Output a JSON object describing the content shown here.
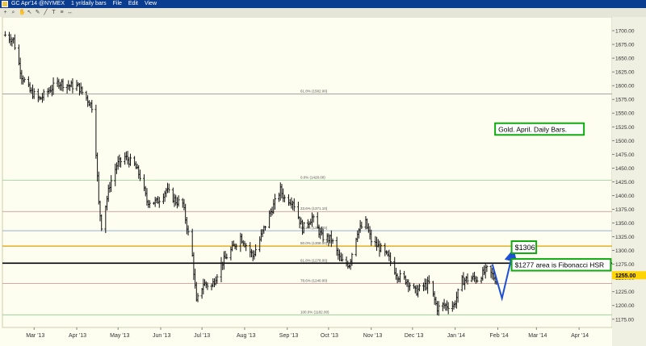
{
  "window": {
    "title": "GC Apr'14 @NYMEX",
    "period": "1 yr/daily bars",
    "menu": [
      "File",
      "Edit",
      "View"
    ]
  },
  "toolbar": {
    "icons": [
      "crosshair-icon",
      "zoom-icon",
      "hand-icon",
      "arrow-icon",
      "pencil-icon",
      "line-icon",
      "text-icon",
      "fib-icon",
      "measure-icon"
    ]
  },
  "chart_data": {
    "type": "ohlc",
    "title": "",
    "xlabel": "",
    "ylabel": "",
    "ylim": [
      1160,
      1725
    ],
    "y_ticks": [
      1700,
      1675,
      1650,
      1625,
      1600,
      1575,
      1550,
      1525,
      1500,
      1475,
      1450,
      1425,
      1400,
      1375,
      1350,
      1325,
      1300,
      1275,
      1250,
      1225,
      1200,
      1175
    ],
    "y_tick_labels": [
      "1700.00",
      "1675.00",
      "1650.00",
      "1625.00",
      "1600.00",
      "1575.00",
      "1550.00",
      "1525.00",
      "1500.00",
      "1475.00",
      "1450.00",
      "1425.00",
      "1400.00",
      "1375.00",
      "1350.00",
      "1325.00",
      "1300.00",
      "1275.00",
      "1250.00",
      "1225.00",
      "1200.00",
      "1175.00"
    ],
    "x_range": [
      "2013-02-06",
      "2014-04-25"
    ],
    "x_ticks": [
      {
        "date": "2013-03-01",
        "label": "Mar '13"
      },
      {
        "date": "2013-04-01",
        "label": "Apr '13"
      },
      {
        "date": "2013-05-01",
        "label": "May '13"
      },
      {
        "date": "2013-06-01",
        "label": "Jun '13"
      },
      {
        "date": "2013-07-01",
        "label": "Jul '13"
      },
      {
        "date": "2013-08-01",
        "label": "Aug '13"
      },
      {
        "date": "2013-09-01",
        "label": "Sep '13"
      },
      {
        "date": "2013-10-01",
        "label": "Oct '13"
      },
      {
        "date": "2013-11-01",
        "label": "Nov '13"
      },
      {
        "date": "2013-12-01",
        "label": "Dec '13"
      },
      {
        "date": "2014-01-01",
        "label": "Jan '14"
      },
      {
        "date": "2014-02-01",
        "label": "Feb '14"
      },
      {
        "date": "2014-03-01",
        "label": "Mar '14"
      },
      {
        "date": "2014-04-01",
        "label": "Apr '14"
      }
    ],
    "price_path": [
      [
        "2013-02-08",
        1692
      ],
      [
        "2013-02-14",
        1683
      ],
      [
        "2013-02-20",
        1618
      ],
      [
        "2013-02-26",
        1590
      ],
      [
        "2013-03-05",
        1575
      ],
      [
        "2013-03-12",
        1592
      ],
      [
        "2013-03-19",
        1606
      ],
      [
        "2013-03-26",
        1600
      ],
      [
        "2013-04-02",
        1598
      ],
      [
        "2013-04-08",
        1578
      ],
      [
        "2013-04-12",
        1562
      ],
      [
        "2013-04-15",
        1480
      ],
      [
        "2013-04-17",
        1385
      ],
      [
        "2013-04-19",
        1345
      ],
      [
        "2013-04-25",
        1420
      ],
      [
        "2013-04-30",
        1455
      ],
      [
        "2013-05-06",
        1470
      ],
      [
        "2013-05-13",
        1455
      ],
      [
        "2013-05-17",
        1435
      ],
      [
        "2013-05-22",
        1390
      ],
      [
        "2013-05-29",
        1388
      ],
      [
        "2013-06-05",
        1410
      ],
      [
        "2013-06-12",
        1390
      ],
      [
        "2013-06-17",
        1385
      ],
      [
        "2013-06-24",
        1290
      ],
      [
        "2013-06-27",
        1205
      ],
      [
        "2013-07-02",
        1240
      ],
      [
        "2013-07-08",
        1235
      ],
      [
        "2013-07-15",
        1275
      ],
      [
        "2013-07-22",
        1300
      ],
      [
        "2013-07-29",
        1325
      ],
      [
        "2013-08-02",
        1310
      ],
      [
        "2013-08-07",
        1290
      ],
      [
        "2013-08-12",
        1320
      ],
      [
        "2013-08-19",
        1365
      ],
      [
        "2013-08-27",
        1410
      ],
      [
        "2013-08-30",
        1395
      ],
      [
        "2013-09-05",
        1390
      ],
      [
        "2013-09-12",
        1340
      ],
      [
        "2013-09-19",
        1360
      ],
      [
        "2013-09-26",
        1325
      ],
      [
        "2013-10-03",
        1320
      ],
      [
        "2013-10-10",
        1280
      ],
      [
        "2013-10-16",
        1275
      ],
      [
        "2013-10-22",
        1335
      ],
      [
        "2013-10-28",
        1350
      ],
      [
        "2013-11-01",
        1318
      ],
      [
        "2013-11-07",
        1305
      ],
      [
        "2013-11-14",
        1285
      ],
      [
        "2013-11-20",
        1255
      ],
      [
        "2013-11-27",
        1245
      ],
      [
        "2013-12-03",
        1225
      ],
      [
        "2013-12-09",
        1235
      ],
      [
        "2013-12-13",
        1240
      ],
      [
        "2013-12-19",
        1195
      ],
      [
        "2013-12-23",
        1200
      ],
      [
        "2013-12-31",
        1200
      ],
      [
        "2014-01-06",
        1245
      ],
      [
        "2014-01-13",
        1250
      ],
      [
        "2014-01-17",
        1248
      ],
      [
        "2014-01-24",
        1265
      ],
      [
        "2014-01-28",
        1255
      ],
      [
        "2014-01-31",
        1245
      ]
    ],
    "last_price": {
      "value": 1255.0,
      "label": "1255.00",
      "color": "#ffd400"
    },
    "fibonacci_levels": [
      {
        "value": 1585.0,
        "label": "61.8% (1582.00)",
        "color": "#888888"
      },
      {
        "value": 1428.0,
        "label": "0.0% (1428.00)",
        "color": "#8fd08f"
      },
      {
        "value": 1371.0,
        "label": "23.6% (1371.10)",
        "color": "#d08888"
      },
      {
        "value": 1336.0,
        "label": "38.2% (1336.20)",
        "color": "#88a8d0"
      },
      {
        "value": 1308.0,
        "label": "50.0% (1308.00)",
        "color": "#e0a000"
      },
      {
        "value": 1277.0,
        "label": "61.8% (1278.00)",
        "color": "#000000"
      },
      {
        "value": 1240.0,
        "label": "78.6% (1240.00)",
        "color": "#d08888"
      },
      {
        "value": 1183.0,
        "label": "100.0% (1182.00)",
        "color": "#8fd08f"
      }
    ],
    "annotations": [
      {
        "id": "gold-label",
        "text": "Gold. April. Daily Bars.",
        "date": "2014-01-30",
        "y": 1521,
        "color": "#11aa11"
      },
      {
        "id": "target-1306",
        "text": "$1306",
        "date": "2014-02-11",
        "y": 1306,
        "color": "#11aa11"
      },
      {
        "id": "fib-hsr",
        "text": "$1277 area is Fibonacci HSR",
        "date": "2014-02-11",
        "y": 1274,
        "color": "#11aa11"
      }
    ],
    "projection_path": [
      [
        "2014-01-28",
        1275
      ],
      [
        "2014-02-04",
        1213
      ],
      [
        "2014-02-12",
        1298
      ]
    ],
    "projection_color": "#1f4fd6",
    "grid": false
  }
}
